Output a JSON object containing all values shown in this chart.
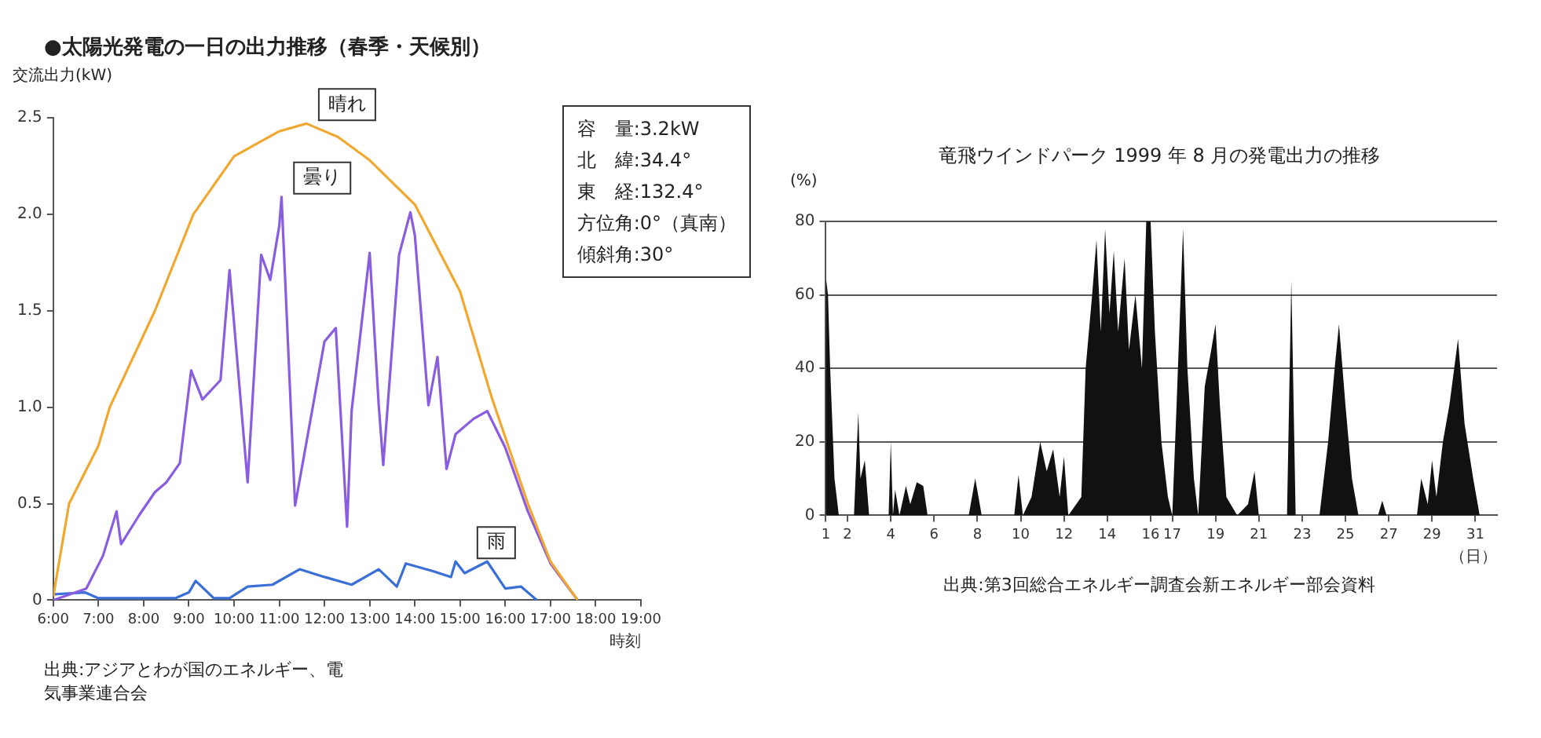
{
  "chart_data": [
    {
      "type": "line",
      "title": "●太陽光発電の一日の出力推移（春季・天候別）",
      "ylabel": "交流出力(kW)",
      "xlabel": "時刻",
      "series": [
        {
          "name": "晴れ",
          "color": "#f0a830",
          "x": [
            6.0,
            6.35,
            7.0,
            7.25,
            8.25,
            9.1,
            10.0,
            11.0,
            11.6,
            12.3,
            13.0,
            14.0,
            15.0,
            15.7,
            16.5,
            17.0,
            17.6
          ],
          "values": [
            0.02,
            0.5,
            0.8,
            1.0,
            1.5,
            2.0,
            2.3,
            2.43,
            2.47,
            2.4,
            2.28,
            2.05,
            1.6,
            1.05,
            0.5,
            0.2,
            0
          ]
        },
        {
          "name": "曇り",
          "color": "#8a5ce0",
          "x": [
            6.0,
            6.73,
            7.1,
            7.4,
            7.5,
            7.9,
            8.25,
            8.5,
            8.8,
            9.05,
            9.3,
            9.7,
            9.9,
            10.3,
            10.6,
            10.8,
            11.0,
            11.05,
            11.35,
            12.0,
            12.25,
            12.5,
            12.6,
            13.0,
            13.2,
            13.3,
            13.65,
            13.9,
            14.0,
            14.3,
            14.5,
            14.7,
            14.9,
            15.3,
            15.6,
            16.0,
            16.5,
            17.0,
            17.6
          ],
          "values": [
            0,
            0.06,
            0.23,
            0.46,
            0.29,
            0.44,
            0.56,
            0.61,
            0.71,
            1.19,
            1.04,
            1.14,
            1.71,
            0.61,
            1.79,
            1.66,
            1.94,
            2.09,
            0.49,
            1.34,
            1.41,
            0.38,
            0.98,
            1.8,
            1.01,
            0.7,
            1.79,
            2.01,
            1.89,
            1.01,
            1.26,
            0.68,
            0.86,
            0.94,
            0.98,
            0.79,
            0.46,
            0.19,
            0
          ]
        },
        {
          "name": "雨",
          "color": "#3a6fd8",
          "x": [
            6.0,
            6.7,
            7.0,
            8.7,
            9.0,
            9.15,
            9.55,
            9.9,
            10.3,
            10.85,
            11.45,
            12.0,
            12.6,
            13.2,
            13.6,
            13.8,
            14.4,
            14.8,
            14.9,
            15.1,
            15.6,
            16.0,
            16.35,
            16.7
          ],
          "values": [
            0.03,
            0.04,
            0.01,
            0.01,
            0.04,
            0.1,
            0.01,
            0.01,
            0.07,
            0.08,
            0.16,
            0.12,
            0.08,
            0.16,
            0.07,
            0.19,
            0.15,
            0.12,
            0.2,
            0.14,
            0.2,
            0.06,
            0.07,
            0
          ]
        }
      ],
      "xlim": [
        6,
        19
      ],
      "xticks": [
        {
          "value": 6,
          "label": "6:00"
        },
        {
          "value": 7,
          "label": "7:00"
        },
        {
          "value": 8,
          "label": "8:00"
        },
        {
          "value": 9,
          "label": "9:00"
        },
        {
          "value": 10,
          "label": "10:00"
        },
        {
          "value": 11,
          "label": "11:00"
        },
        {
          "value": 12,
          "label": "12:00"
        },
        {
          "value": 13,
          "label": "13:00"
        },
        {
          "value": 14,
          "label": "14:00"
        },
        {
          "value": 15,
          "label": "15:00"
        },
        {
          "value": 16,
          "label": "16:00"
        },
        {
          "value": 17,
          "label": "17:00"
        },
        {
          "value": 18,
          "label": "18:00"
        },
        {
          "value": 19,
          "label": "19:00"
        }
      ],
      "ylim": [
        0,
        2.5
      ],
      "yticks": [
        0,
        0.5,
        {
          "value": 1,
          "label": "1.0"
        },
        1.5,
        {
          "value": 2,
          "label": "2.0"
        },
        2.5
      ],
      "marker": "none",
      "annotations": [
        "容　量:3.2kW",
        "北　緯:34.4°",
        "東　経:132.4°",
        "方位角:0°（真南）",
        "傾斜角:30°",
        "出典:アジアとわが国のエネルギー、電気事業連合会"
      ]
    },
    {
      "type": "area",
      "title": "竜飛ウインドパーク 1999 年 8 月の発電出力の推移",
      "ylabel": "(%)",
      "xlabel": "（日）",
      "color": "#111111",
      "x": [
        1.0,
        1.1,
        1.2,
        1.4,
        1.6,
        2.3,
        2.5,
        2.6,
        2.8,
        3.0,
        3.9,
        4.0,
        4.1,
        4.2,
        4.4,
        4.7,
        4.9,
        5.2,
        5.5,
        5.7,
        7.6,
        7.9,
        8.2,
        9.7,
        9.9,
        10.1,
        10.5,
        10.9,
        11.2,
        11.5,
        11.8,
        12.0,
        12.2,
        12.8,
        13.0,
        13.3,
        13.5,
        13.7,
        13.9,
        14.1,
        14.3,
        14.5,
        14.8,
        15.0,
        15.3,
        15.6,
        15.8,
        16.0,
        16.2,
        16.5,
        16.8,
        17.0,
        17.2,
        17.5,
        17.7,
        18.0,
        18.2,
        18.5,
        18.8,
        19.0,
        19.2,
        19.5,
        20.0,
        20.5,
        20.8,
        21.0,
        22.3,
        22.5,
        22.7,
        23.8,
        24.2,
        24.5,
        24.7,
        25.0,
        25.3,
        25.6,
        26.5,
        26.7,
        26.9,
        28.3,
        28.5,
        28.8,
        29.0,
        29.2,
        29.5,
        29.8,
        30.2,
        30.5,
        30.9,
        31.2
      ],
      "values": [
        65,
        60,
        40,
        10,
        0,
        0,
        28,
        10,
        15,
        0,
        0,
        20,
        0,
        7,
        0,
        8,
        3,
        9,
        8,
        0,
        0,
        10,
        0,
        0,
        11,
        0,
        5,
        20,
        12,
        18,
        5,
        16,
        0,
        5,
        40,
        60,
        75,
        50,
        78,
        55,
        72,
        50,
        70,
        45,
        60,
        40,
        80,
        80,
        50,
        20,
        5,
        0,
        30,
        78,
        40,
        10,
        0,
        35,
        45,
        52,
        30,
        5,
        0,
        3,
        12,
        0,
        0,
        64,
        0,
        0,
        20,
        40,
        52,
        30,
        10,
        0,
        0,
        4,
        0,
        0,
        10,
        3,
        15,
        5,
        20,
        30,
        48,
        25,
        10,
        0
      ],
      "xlim": [
        1,
        32
      ],
      "xticks": [
        1,
        2,
        4,
        6,
        8,
        10,
        12,
        14,
        16,
        17,
        19,
        21,
        23,
        25,
        27,
        29,
        31
      ],
      "ylim": [
        0,
        80
      ],
      "yticks": [
        0,
        20,
        40,
        60,
        80
      ],
      "grid": "y",
      "annotations": [
        "出典:第3回総合エネルギー調査会新エネルギー部会資料"
      ]
    }
  ]
}
